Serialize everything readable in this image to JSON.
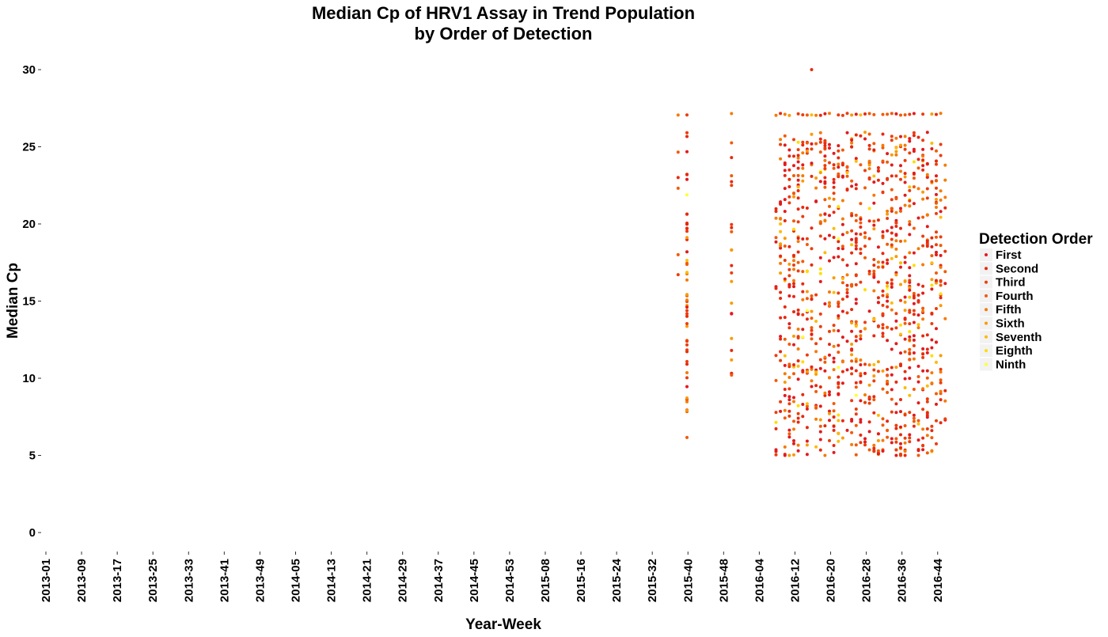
{
  "chart_data": {
    "type": "scatter",
    "title": "Median Cp of HRV1 Assay in Trend Population",
    "subtitle": "by Order of Detection",
    "xlabel": "Year-Week",
    "ylabel": "Median Cp",
    "ylim": [
      0,
      30
    ],
    "y_ticks": [
      0,
      5,
      10,
      15,
      20,
      25,
      30
    ],
    "x_tick_labels": [
      "2013-01",
      "2013-09",
      "2013-17",
      "2013-25",
      "2013-33",
      "2013-41",
      "2013-49",
      "2014-05",
      "2014-13",
      "2014-21",
      "2014-29",
      "2014-37",
      "2014-45",
      "2014-53",
      "2015-08",
      "2015-16",
      "2015-24",
      "2015-32",
      "2015-40",
      "2015-48",
      "2016-04",
      "2016-12",
      "2016-20",
      "2016-28",
      "2016-36",
      "2016-44"
    ],
    "grid": false,
    "legend": {
      "title": "Detection Order",
      "placement": "right",
      "entries": [
        {
          "name": "First",
          "color": "#e31a1c"
        },
        {
          "name": "Second",
          "color": "#e8290e"
        },
        {
          "name": "Third",
          "color": "#ec3d0c"
        },
        {
          "name": "Fourth",
          "color": "#f25a06"
        },
        {
          "name": "Fifth",
          "color": "#f67a04"
        },
        {
          "name": "Sixth",
          "color": "#fa9a02"
        },
        {
          "name": "Seventh",
          "color": "#fdbb01"
        },
        {
          "name": "Eighth",
          "color": "#ffdd00"
        },
        {
          "name": "Ninth",
          "color": "#ffff33"
        }
      ]
    },
    "clusters": [
      {
        "x": "2015-38",
        "ymin": 14.5,
        "ymax": 27.2,
        "n": 5
      },
      {
        "x": "2015-40",
        "ymin": 6.0,
        "ymax": 27.2,
        "n": 55
      },
      {
        "x": "2015-50",
        "ymin": 9.8,
        "ymax": 27.2,
        "n": 22
      },
      {
        "x_from": "2016-08",
        "x_to": "2016-46",
        "ymin": 5.0,
        "ymax": 27.3,
        "n": 1100
      }
    ],
    "ceiling_value": 27.1,
    "outliers": [
      {
        "x": "2016-16",
        "y": 30.0
      },
      {
        "x": "2016-10",
        "y": 5.0
      },
      {
        "x": "2016-11",
        "y": 5.0
      },
      {
        "x": "2016-19",
        "y": 5.0
      },
      {
        "x": "2016-35",
        "y": 5.0
      },
      {
        "x": "2016-36",
        "y": 5.0
      },
      {
        "x": "2016-37",
        "y": 5.0
      },
      {
        "x": "2016-40",
        "y": 5.0
      }
    ]
  }
}
